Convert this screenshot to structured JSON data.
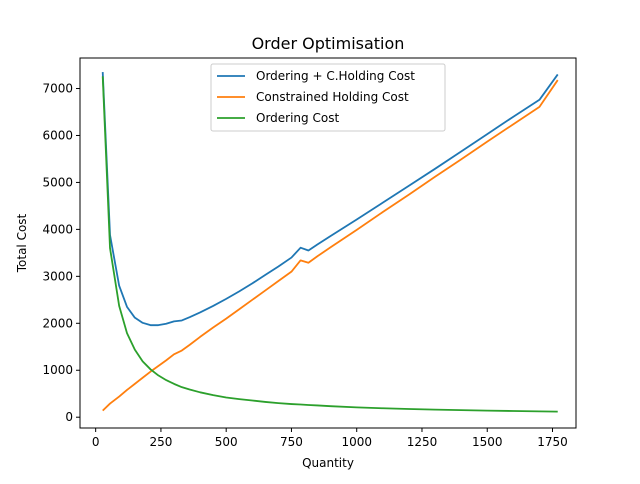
{
  "chart_data": {
    "type": "line",
    "title": "Order Optimisation",
    "xlabel": "Quantity",
    "ylabel": "Total Cost",
    "xlim": [
      -60,
      1840
    ],
    "ylim": [
      -230,
      7650
    ],
    "xticks": [
      0,
      250,
      500,
      750,
      1000,
      1250,
      1500,
      1750
    ],
    "yticks": [
      0,
      1000,
      2000,
      3000,
      4000,
      5000,
      6000,
      7000
    ],
    "grid": false,
    "legend_position": "top-center",
    "series": [
      {
        "name": "Ordering + C.Holding Cost",
        "color": "#1f77b4",
        "points": [
          [
            27,
            7350
          ],
          [
            55,
            3880
          ],
          [
            90,
            2800
          ],
          [
            120,
            2350
          ],
          [
            150,
            2120
          ],
          [
            180,
            2010
          ],
          [
            210,
            1960
          ],
          [
            240,
            1960
          ],
          [
            270,
            1990
          ],
          [
            300,
            2040
          ],
          [
            330,
            2060
          ],
          [
            360,
            2130
          ],
          [
            400,
            2230
          ],
          [
            450,
            2370
          ],
          [
            500,
            2520
          ],
          [
            550,
            2680
          ],
          [
            600,
            2850
          ],
          [
            650,
            3030
          ],
          [
            700,
            3210
          ],
          [
            750,
            3400
          ],
          [
            785,
            3610
          ],
          [
            815,
            3550
          ],
          [
            850,
            3680
          ],
          [
            900,
            3860
          ],
          [
            1000,
            4210
          ],
          [
            1100,
            4570
          ],
          [
            1200,
            4930
          ],
          [
            1300,
            5290
          ],
          [
            1400,
            5660
          ],
          [
            1500,
            6030
          ],
          [
            1600,
            6400
          ],
          [
            1700,
            6760
          ],
          [
            1770,
            7300
          ]
        ]
      },
      {
        "name": "Constrained Holding Cost",
        "color": "#ff7f0e",
        "points": [
          [
            27,
            140
          ],
          [
            55,
            290
          ],
          [
            90,
            440
          ],
          [
            120,
            580
          ],
          [
            150,
            710
          ],
          [
            180,
            840
          ],
          [
            210,
            970
          ],
          [
            240,
            1090
          ],
          [
            270,
            1210
          ],
          [
            300,
            1340
          ],
          [
            330,
            1420
          ],
          [
            360,
            1540
          ],
          [
            400,
            1710
          ],
          [
            450,
            1910
          ],
          [
            500,
            2100
          ],
          [
            550,
            2300
          ],
          [
            600,
            2500
          ],
          [
            650,
            2700
          ],
          [
            700,
            2900
          ],
          [
            750,
            3100
          ],
          [
            785,
            3340
          ],
          [
            815,
            3290
          ],
          [
            850,
            3430
          ],
          [
            900,
            3620
          ],
          [
            1000,
            3990
          ],
          [
            1100,
            4370
          ],
          [
            1200,
            4740
          ],
          [
            1300,
            5120
          ],
          [
            1400,
            5490
          ],
          [
            1500,
            5870
          ],
          [
            1600,
            6240
          ],
          [
            1700,
            6610
          ],
          [
            1770,
            7180
          ]
        ]
      },
      {
        "name": "Ordering Cost",
        "color": "#2ca02c",
        "points": [
          [
            27,
            7260
          ],
          [
            55,
            3600
          ],
          [
            90,
            2370
          ],
          [
            120,
            1790
          ],
          [
            150,
            1440
          ],
          [
            180,
            1190
          ],
          [
            210,
            1020
          ],
          [
            240,
            890
          ],
          [
            270,
            790
          ],
          [
            300,
            710
          ],
          [
            330,
            640
          ],
          [
            360,
            590
          ],
          [
            400,
            530
          ],
          [
            450,
            470
          ],
          [
            500,
            420
          ],
          [
            550,
            385
          ],
          [
            600,
            355
          ],
          [
            650,
            325
          ],
          [
            700,
            300
          ],
          [
            750,
            280
          ],
          [
            785,
            270
          ],
          [
            815,
            260
          ],
          [
            850,
            250
          ],
          [
            900,
            235
          ],
          [
            1000,
            210
          ],
          [
            1100,
            190
          ],
          [
            1200,
            175
          ],
          [
            1300,
            162
          ],
          [
            1400,
            150
          ],
          [
            1500,
            140
          ],
          [
            1600,
            132
          ],
          [
            1700,
            124
          ],
          [
            1770,
            118
          ]
        ]
      }
    ]
  }
}
